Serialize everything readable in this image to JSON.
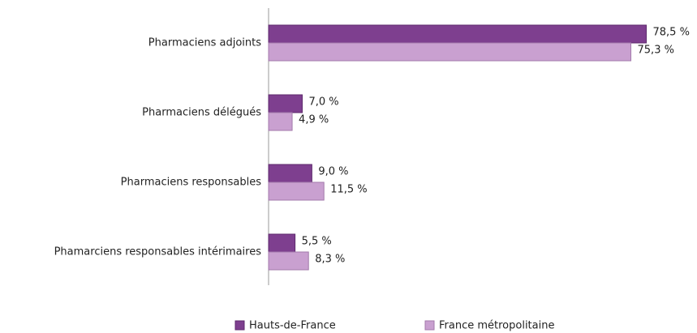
{
  "chart_data": {
    "type": "bar",
    "orientation": "horizontal",
    "categories": [
      "Pharmaciens adjoints",
      "Pharmaciens délégués",
      "Pharmaciens responsables",
      "Phamarciens responsables intérimaires"
    ],
    "series": [
      {
        "name": "Hauts-de-France",
        "color": "#7e3f8f",
        "values": [
          78.5,
          7.0,
          9.0,
          5.5
        ],
        "value_labels": [
          "78,5 %",
          "7,0 %",
          "9,0 %",
          "5,5 %"
        ]
      },
      {
        "name": "France métropolitaine",
        "color": "#c9a0d0",
        "values": [
          75.3,
          4.9,
          11.5,
          8.3
        ],
        "value_labels": [
          "75,3 %",
          "4,9 %",
          "11,5 %",
          "8,3 %"
        ]
      }
    ]
  }
}
